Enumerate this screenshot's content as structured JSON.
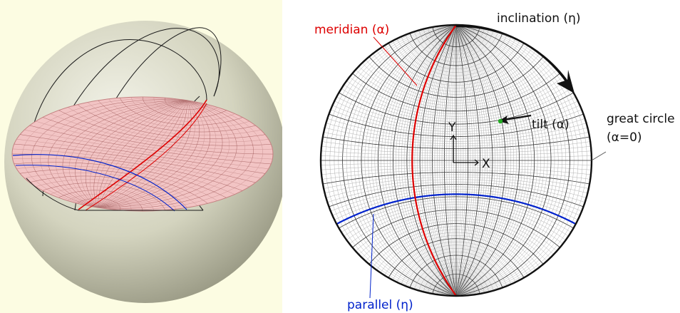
{
  "left_panel": {
    "background": "#fcfce2",
    "sphere_color": "#d9d9c8",
    "plane_color": "#f2c4c4"
  },
  "right_panel": {
    "labels": {
      "meridian": "meridian (α)",
      "inclination": "inclination (η)",
      "tilt": "tilt (α)",
      "great_circle_line1": "great circle",
      "great_circle_line2": "(α=0)",
      "axis_y": "Y",
      "axis_x": "X",
      "parallel": "parallel (η)"
    },
    "colors": {
      "meridian": "#dd0000",
      "parallel": "#0022cc",
      "tilt_point": "#22aa22",
      "grid": "#555555",
      "text": "#111111"
    }
  }
}
